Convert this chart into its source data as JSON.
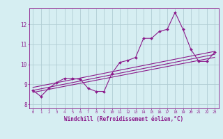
{
  "xlabel": "Windchill (Refroidissement éolien,°C)",
  "ylabel": "",
  "background_color": "#d6eef2",
  "grid_color": "#b0cdd4",
  "line_color": "#8b1a8b",
  "x_data": [
    0,
    1,
    2,
    3,
    4,
    5,
    6,
    7,
    8,
    9,
    10,
    11,
    12,
    13,
    14,
    15,
    16,
    17,
    18,
    19,
    20,
    21,
    22,
    23
  ],
  "series1": [
    8.7,
    8.4,
    8.8,
    9.1,
    9.3,
    9.3,
    9.25,
    8.8,
    8.65,
    8.65,
    9.55,
    10.1,
    10.2,
    10.35,
    11.3,
    11.3,
    11.65,
    11.75,
    12.6,
    11.75,
    10.75,
    10.15,
    10.15,
    10.6
  ],
  "series2_x": [
    0,
    23
  ],
  "series2_y": [
    8.7,
    10.5
  ],
  "series3_x": [
    0,
    23
  ],
  "series3_y": [
    8.85,
    10.65
  ],
  "series4_x": [
    0,
    23
  ],
  "series4_y": [
    8.6,
    10.35
  ],
  "ylim": [
    7.8,
    12.8
  ],
  "xlim": [
    -0.5,
    23.5
  ],
  "yticks": [
    8,
    9,
    10,
    11,
    12
  ],
  "xticks": [
    0,
    1,
    2,
    3,
    4,
    5,
    6,
    7,
    8,
    9,
    10,
    11,
    12,
    13,
    14,
    15,
    16,
    17,
    18,
    19,
    20,
    21,
    22,
    23
  ]
}
